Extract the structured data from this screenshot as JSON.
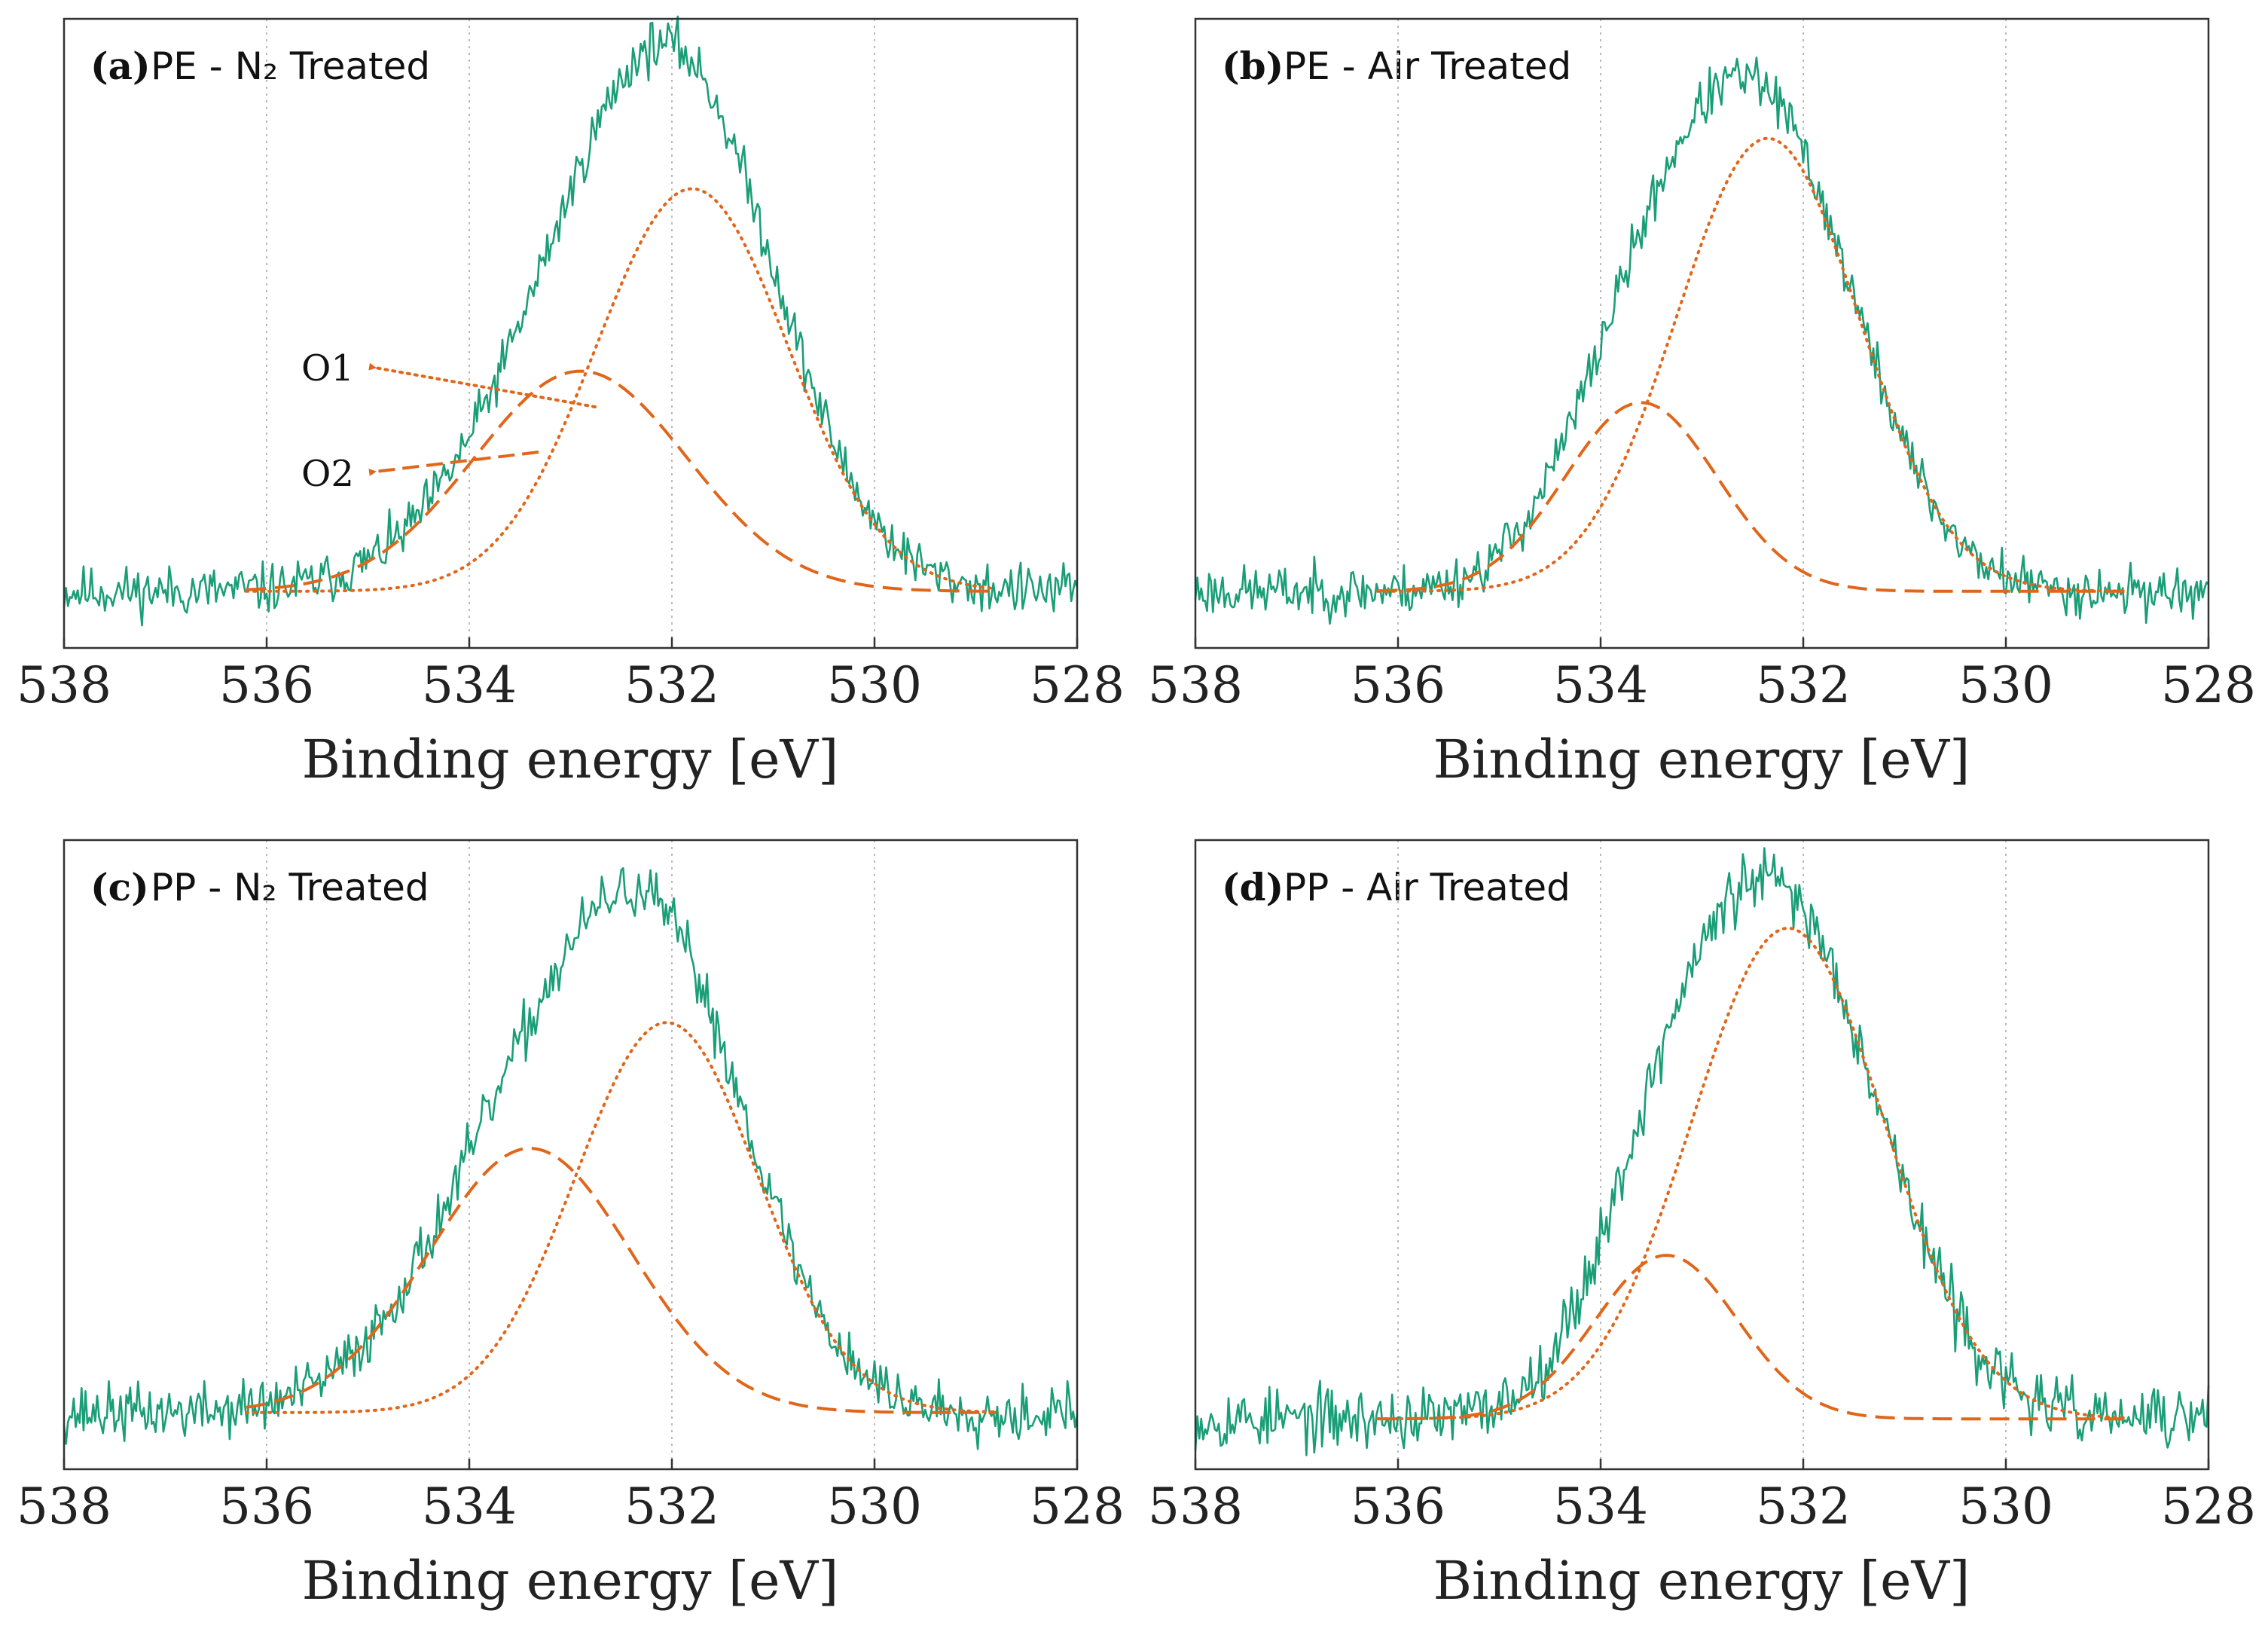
{
  "colors": {
    "data": "#1a9e77",
    "fit": "#e0661a",
    "grid": "#bbbbbb",
    "axes": "#333333"
  },
  "chart_data": [
    {
      "type": "line",
      "panel": "(a)",
      "title": "PE - N₂ Treated",
      "xlabel": "Binding energy [eV]",
      "ylabel": "",
      "xlim": [
        538,
        528
      ],
      "x_reversed": true,
      "xticks": [
        "538",
        "536",
        "534",
        "532",
        "530",
        "528"
      ],
      "grid": "vertical dotted",
      "baseline": 0.09,
      "noise": 0.018,
      "seed": 11,
      "series": [
        {
          "style": "dotted",
          "peak_center": 531.8,
          "amplitude": 0.64,
          "sigma": 0.95
        },
        {
          "style": "dashed",
          "peak_center": 532.9,
          "amplitude": 0.35,
          "sigma": 1.05
        }
      ],
      "annotations": [
        {
          "text": "O1",
          "target": "dotted"
        },
        {
          "text": "O2",
          "target": "dashed"
        }
      ]
    },
    {
      "type": "line",
      "panel": "(b)",
      "title": "PE - Air Treated",
      "xlabel": "Binding energy [eV]",
      "ylabel": "",
      "xlim": [
        538,
        528
      ],
      "x_reversed": true,
      "xticks": [
        "538",
        "536",
        "534",
        "532",
        "530",
        "528"
      ],
      "grid": "vertical dotted",
      "baseline": 0.09,
      "noise": 0.018,
      "seed": 23,
      "series": [
        {
          "style": "dotted",
          "peak_center": 532.35,
          "amplitude": 0.72,
          "sigma": 0.9
        },
        {
          "style": "dashed",
          "peak_center": 533.6,
          "amplitude": 0.3,
          "sigma": 0.75
        }
      ],
      "annotations": []
    },
    {
      "type": "line",
      "panel": "(c)",
      "title": "PP - N₂ Treated",
      "xlabel": "Binding energy [eV]",
      "ylabel": "",
      "xlim": [
        538,
        528
      ],
      "x_reversed": true,
      "xticks": [
        "538",
        "536",
        "534",
        "532",
        "530",
        "528"
      ],
      "grid": "vertical dotted",
      "baseline": 0.09,
      "noise": 0.02,
      "seed": 37,
      "series": [
        {
          "style": "dotted",
          "peak_center": 532.05,
          "amplitude": 0.62,
          "sigma": 0.9
        },
        {
          "style": "dashed",
          "peak_center": 533.4,
          "amplitude": 0.42,
          "sigma": 1.0
        }
      ],
      "annotations": []
    },
    {
      "type": "line",
      "panel": "(d)",
      "title": "PP - Air Treated",
      "xlabel": "Binding energy [eV]",
      "ylabel": "",
      "xlim": [
        538,
        528
      ],
      "x_reversed": true,
      "xticks": [
        "538",
        "536",
        "534",
        "532",
        "530",
        "528"
      ],
      "grid": "vertical dotted",
      "baseline": 0.08,
      "noise": 0.022,
      "seed": 53,
      "series": [
        {
          "style": "dotted",
          "peak_center": 532.15,
          "amplitude": 0.78,
          "sigma": 0.95
        },
        {
          "style": "dashed",
          "peak_center": 533.35,
          "amplitude": 0.26,
          "sigma": 0.7
        }
      ],
      "annotations": []
    }
  ]
}
